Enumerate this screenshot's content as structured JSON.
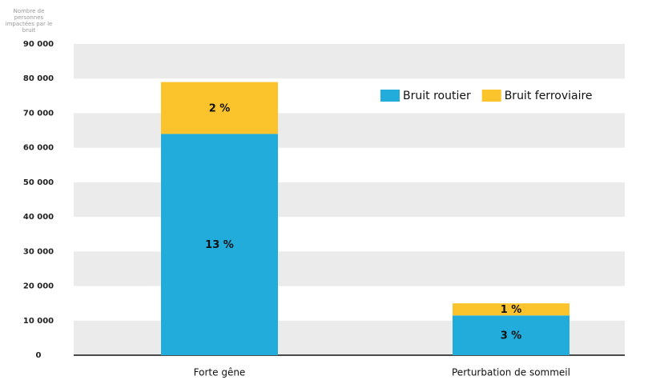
{
  "chart_data": {
    "type": "stacked_bar",
    "ylabel": "Nombre de personnes impactées par le bruit",
    "categories": [
      "Forte gêne",
      "Perturbation de sommeil"
    ],
    "series": [
      {
        "name": "Bruit routier",
        "color": "#22acdc",
        "values": [
          64000,
          11500
        ],
        "shares": [
          "13 %",
          "3 %"
        ]
      },
      {
        "name": "Bruit ferroviaire",
        "color": "#fcc42c",
        "values": [
          15000,
          3500
        ],
        "shares": [
          "2 %",
          "1 %"
        ]
      }
    ],
    "ylim": [
      0,
      90000
    ],
    "yticks": [
      0,
      {
        "value": 10000,
        "label": "10 000"
      },
      {
        "value": 20000,
        "label": "20 000"
      },
      {
        "value": 30000,
        "label": "30 000"
      },
      {
        "value": 40000,
        "label": "40 000"
      },
      {
        "value": 50000,
        "label": "50 000"
      },
      {
        "value": 60000,
        "label": "60 000"
      },
      {
        "value": 70000,
        "label": "70 000"
      },
      {
        "value": 80000,
        "label": "80 000"
      },
      {
        "value": 90000,
        "label": "90 000"
      }
    ],
    "grid": "bands",
    "legend": "upper right"
  }
}
